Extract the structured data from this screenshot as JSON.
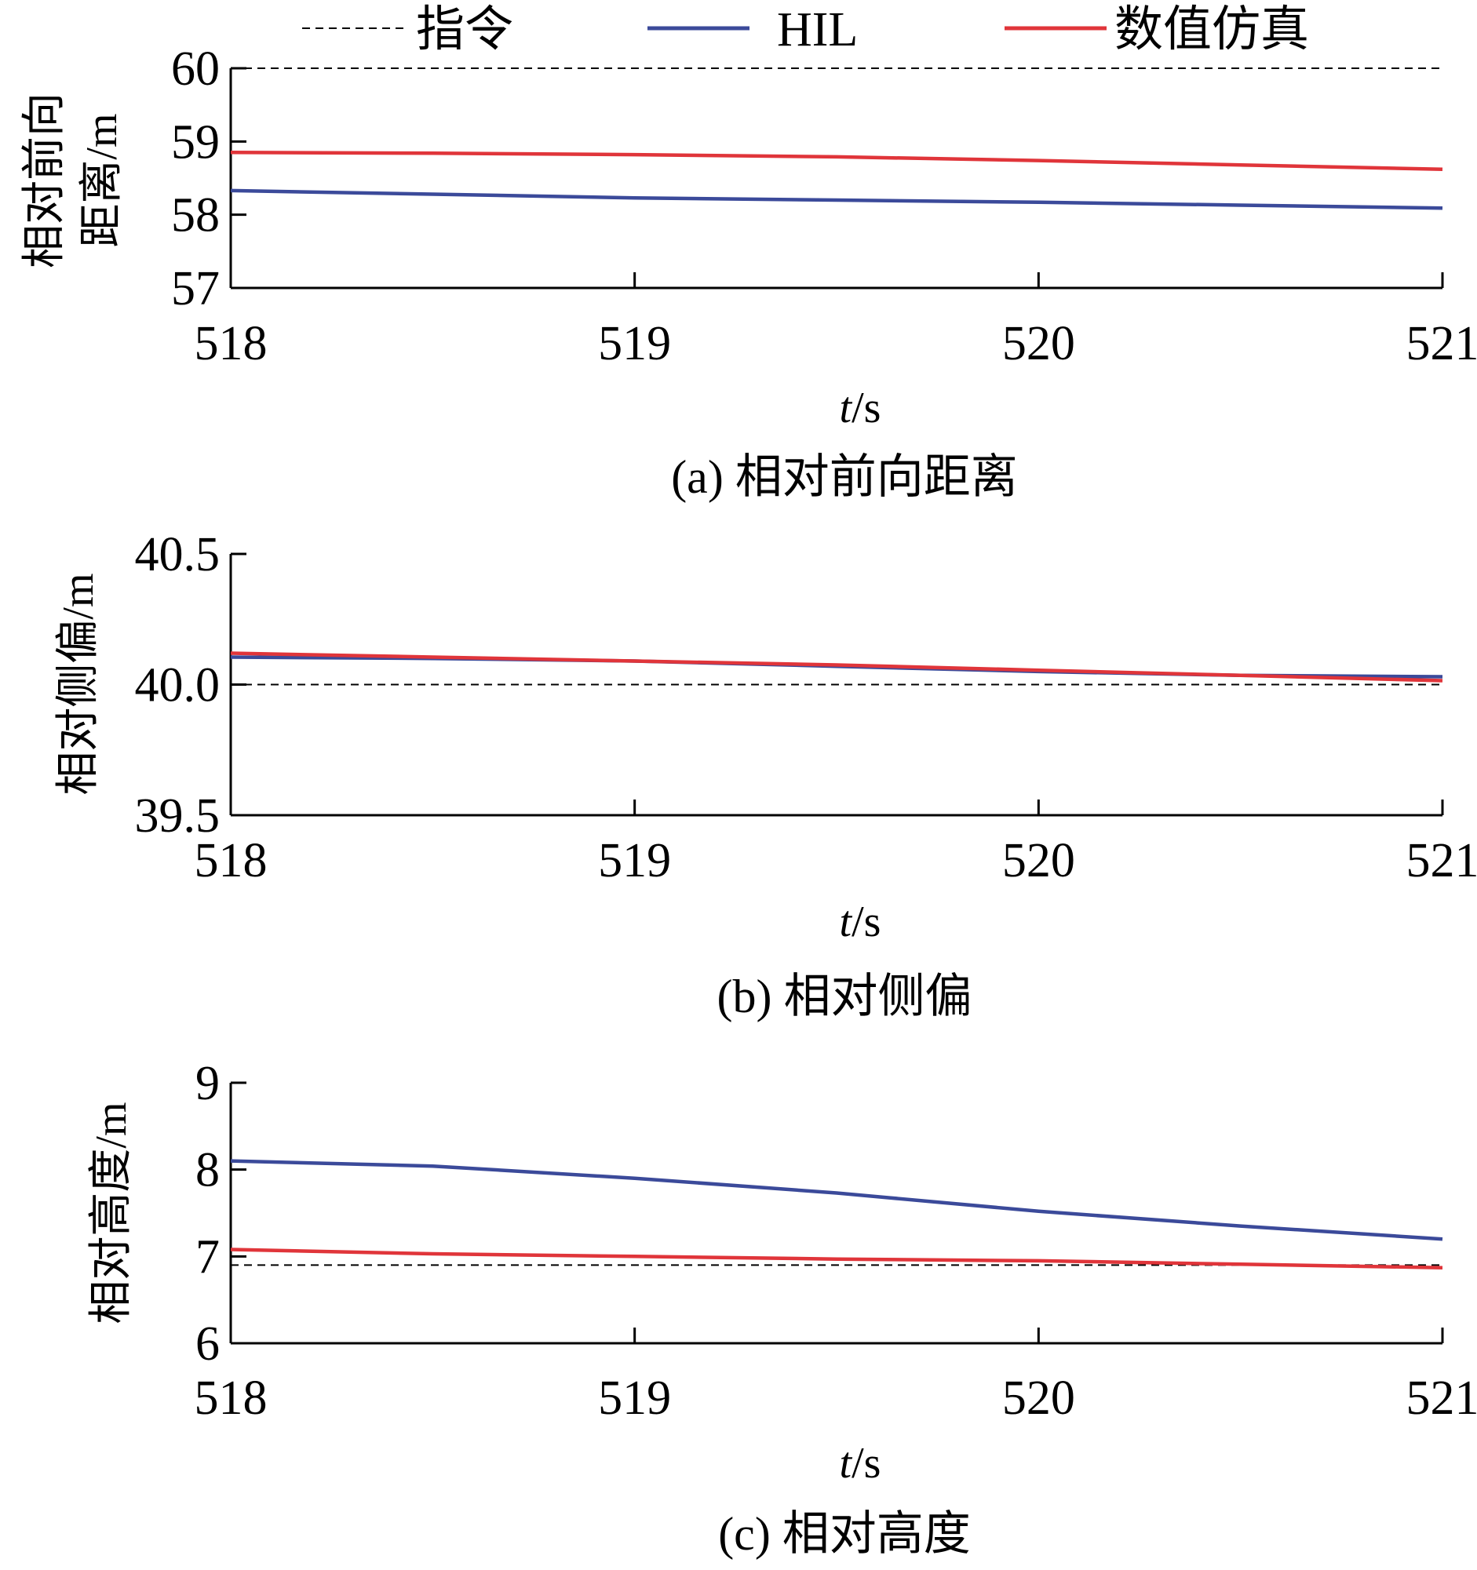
{
  "legend": {
    "items": [
      {
        "label": "指令",
        "color": "#000000",
        "dash": true
      },
      {
        "label": "HIL",
        "color": "#3b4a9a",
        "dash": false
      },
      {
        "label": "数值仿真",
        "color": "#e0353a",
        "dash": false
      }
    ]
  },
  "chart_data": [
    {
      "type": "line",
      "caption": "(a) 相对前向距离",
      "xlabel_italic": "t",
      "xlabel_unit": "/s",
      "ylabel_lines": [
        "相对前向",
        "距离/m"
      ],
      "xlim": [
        518,
        521
      ],
      "ylim": [
        57,
        60
      ],
      "xticks": [
        518,
        519,
        520,
        521
      ],
      "yticks": [
        57,
        58,
        59,
        60
      ],
      "ytick_labels": [
        "57",
        "58",
        "59",
        "60"
      ],
      "series": [
        {
          "name": "指令",
          "color": "#000000",
          "dash": true,
          "x": [
            518,
            521
          ],
          "y": [
            60,
            60
          ]
        },
        {
          "name": "HIL",
          "color": "#3b4a9a",
          "dash": false,
          "x": [
            518,
            518.5,
            519,
            519.5,
            520,
            520.5,
            521
          ],
          "y": [
            58.33,
            58.28,
            58.23,
            58.2,
            58.17,
            58.13,
            58.09
          ]
        },
        {
          "name": "数值仿真",
          "color": "#e0353a",
          "dash": false,
          "x": [
            518,
            518.5,
            519,
            519.5,
            520,
            520.5,
            521
          ],
          "y": [
            58.85,
            58.84,
            58.82,
            58.79,
            58.74,
            58.68,
            58.62
          ]
        }
      ]
    },
    {
      "type": "line",
      "caption": "(b) 相对侧偏",
      "xlabel_italic": "t",
      "xlabel_unit": "/s",
      "ylabel_lines": [
        "相对侧偏/m"
      ],
      "xlim": [
        518,
        521
      ],
      "ylim": [
        39.5,
        40.5
      ],
      "xticks": [
        518,
        519,
        520,
        521
      ],
      "yticks": [
        39.5,
        40.0,
        40.5
      ],
      "ytick_labels": [
        "39.5",
        "40.0",
        "40.5"
      ],
      "series": [
        {
          "name": "指令",
          "color": "#000000",
          "dash": true,
          "x": [
            518,
            521
          ],
          "y": [
            40.0,
            40.0
          ]
        },
        {
          "name": "HIL",
          "color": "#3b4a9a",
          "dash": false,
          "x": [
            518,
            518.5,
            519,
            519.5,
            520,
            520.5,
            521
          ],
          "y": [
            40.105,
            40.1,
            40.09,
            40.07,
            40.05,
            40.035,
            40.03
          ]
        },
        {
          "name": "数值仿真",
          "color": "#e0353a",
          "dash": false,
          "x": [
            518,
            518.5,
            519,
            519.5,
            520,
            520.5,
            521
          ],
          "y": [
            40.12,
            40.105,
            40.09,
            40.075,
            40.055,
            40.035,
            40.015
          ]
        }
      ]
    },
    {
      "type": "line",
      "caption": "(c) 相对高度",
      "xlabel_italic": "t",
      "xlabel_unit": "/s",
      "ylabel_lines": [
        "相对高度/m"
      ],
      "xlim": [
        518,
        521
      ],
      "ylim": [
        6,
        9
      ],
      "xticks": [
        518,
        519,
        520,
        521
      ],
      "yticks": [
        6,
        7,
        8,
        9
      ],
      "ytick_labels": [
        "6",
        "7",
        "8",
        "9"
      ],
      "series": [
        {
          "name": "指令",
          "color": "#000000",
          "dash": true,
          "x": [
            518,
            521
          ],
          "y": [
            6.9,
            6.9
          ]
        },
        {
          "name": "HIL",
          "color": "#3b4a9a",
          "dash": false,
          "x": [
            518,
            518.5,
            519,
            519.5,
            520,
            520.5,
            521
          ],
          "y": [
            8.1,
            8.04,
            7.9,
            7.73,
            7.52,
            7.35,
            7.2
          ]
        },
        {
          "name": "数值仿真",
          "color": "#e0353a",
          "dash": false,
          "x": [
            518,
            518.5,
            519,
            519.5,
            520,
            520.5,
            521
          ],
          "y": [
            7.08,
            7.03,
            7.0,
            6.97,
            6.95,
            6.91,
            6.87
          ]
        }
      ]
    }
  ]
}
